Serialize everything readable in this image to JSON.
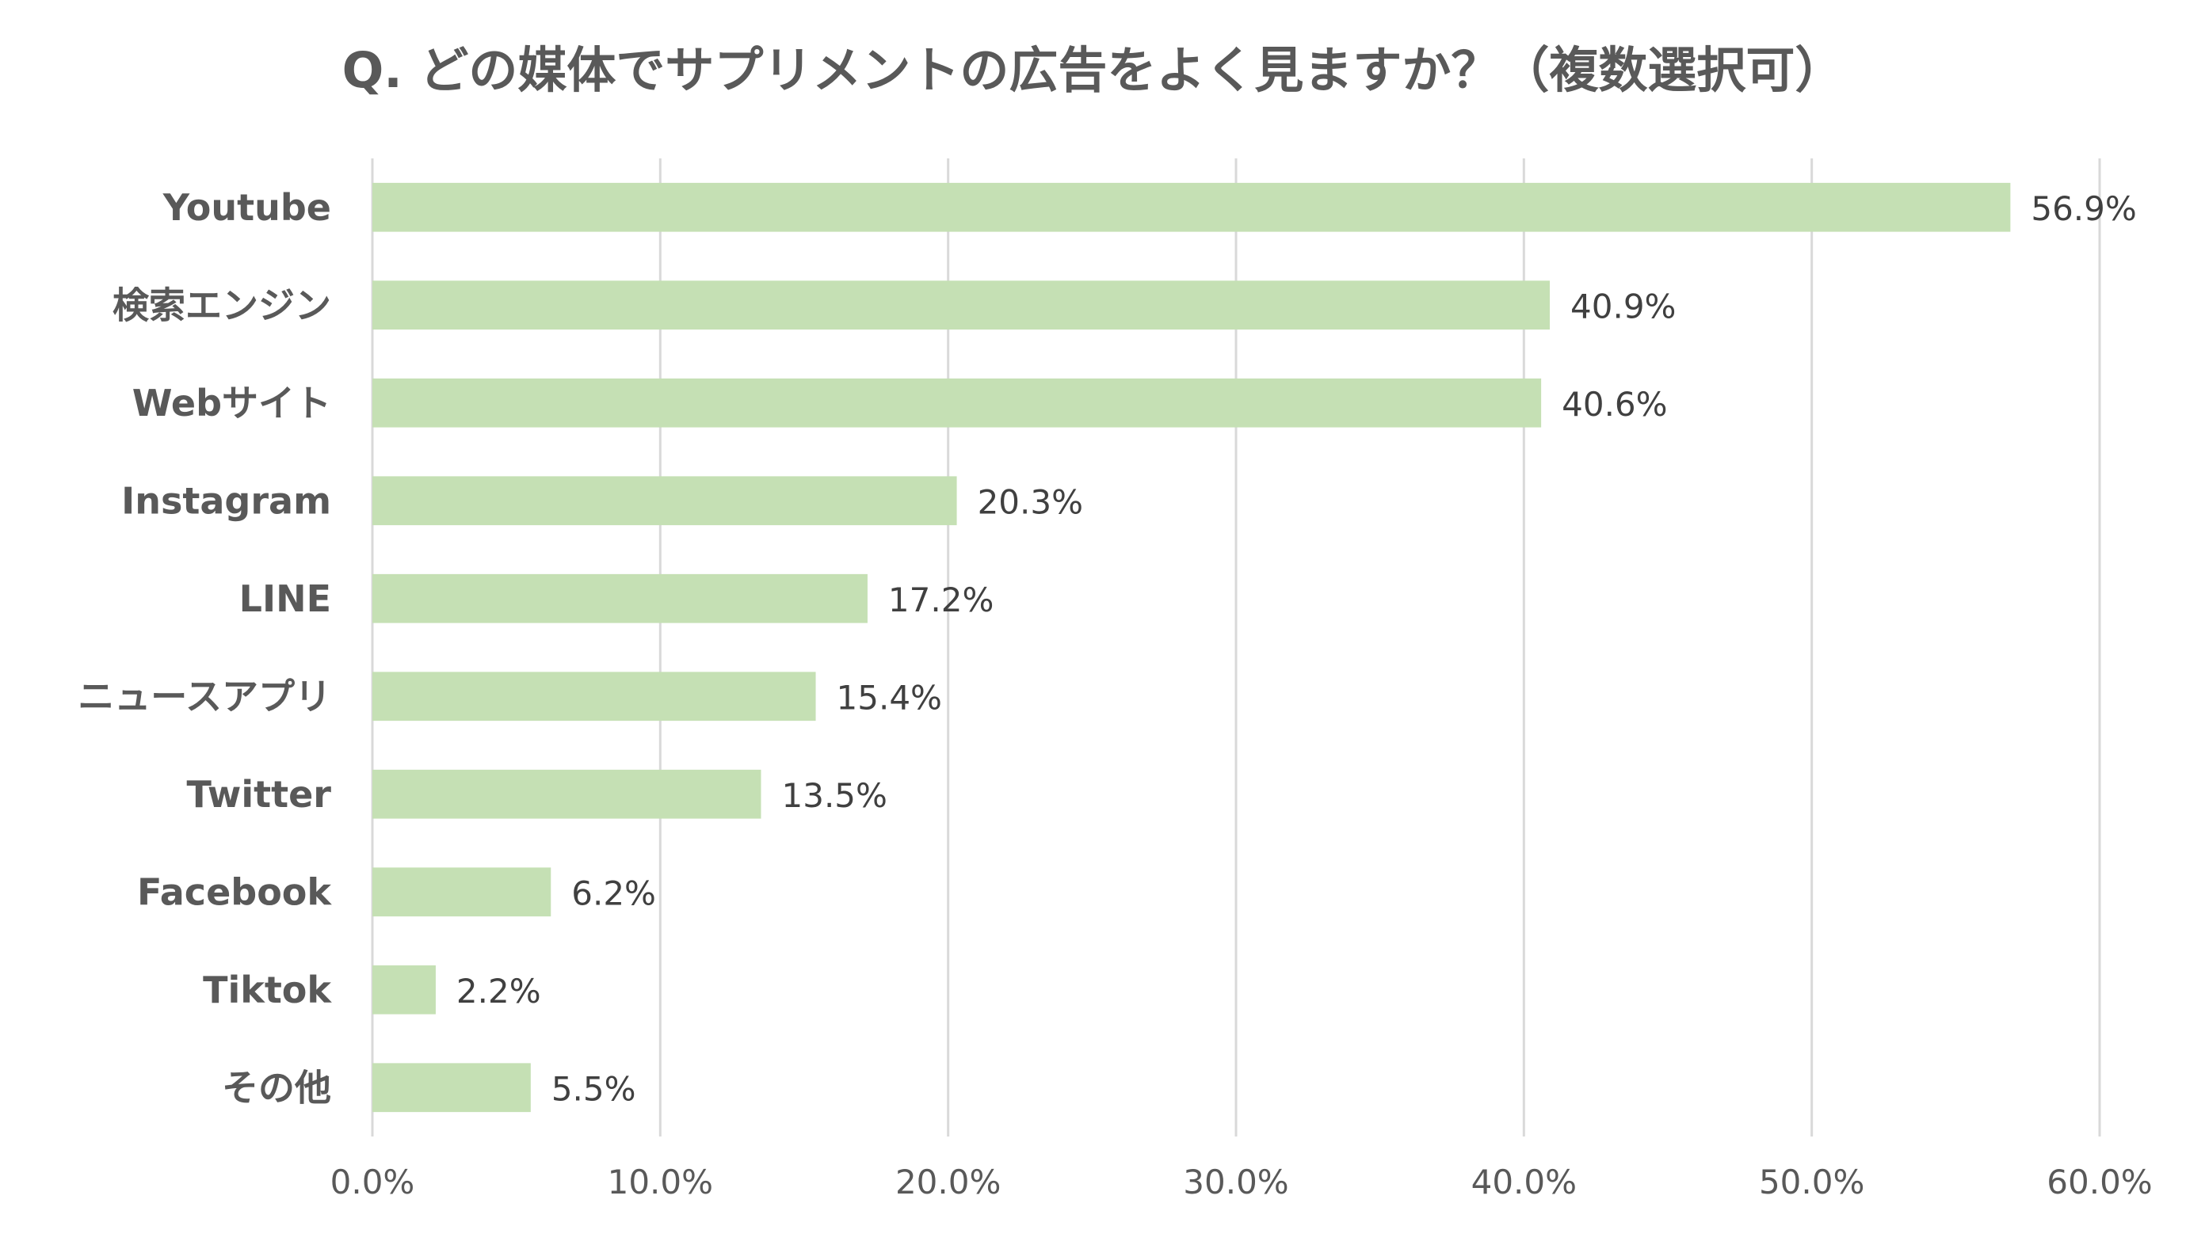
{
  "chart_data": {
    "type": "bar",
    "orientation": "horizontal",
    "title": "Q. どの媒体でサプリメントの広告をよく見ますか？（複数選択可）",
    "categories": [
      "Youtube",
      "検索エンジン",
      "Webサイト",
      "Instagram",
      "LINE",
      "ニュースアプリ",
      "Twitter",
      "Facebook",
      "Tiktok",
      "その他"
    ],
    "values": [
      56.9,
      40.9,
      40.6,
      20.3,
      17.2,
      15.4,
      13.5,
      6.2,
      2.2,
      5.5
    ],
    "data_labels": [
      "56.9%",
      "40.9%",
      "40.6%",
      "20.3%",
      "17.2%",
      "15.4%",
      "13.5%",
      "6.2%",
      "2.2%",
      "5.5%"
    ],
    "xlim": [
      0,
      60
    ],
    "x_ticks": [
      0,
      10,
      20,
      30,
      40,
      50,
      60
    ],
    "x_tick_labels": [
      "0.0%",
      "10.0%",
      "20.0%",
      "30.0%",
      "40.0%",
      "50.0%",
      "60.0%"
    ],
    "xlabel": "",
    "ylabel": "",
    "grid": "vertical",
    "legend": "none",
    "bar_color": "#c5e0b4",
    "grid_color": "#d9d9d9"
  }
}
